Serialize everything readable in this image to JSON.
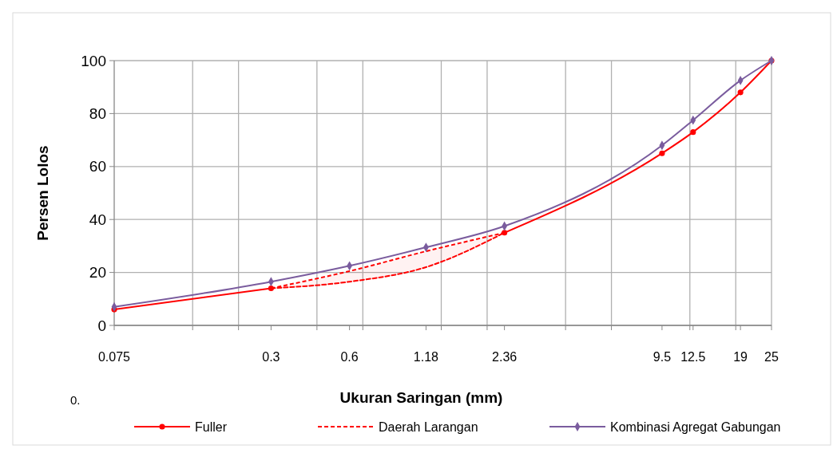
{
  "chart_data": {
    "type": "line",
    "xlabel": "Ukuran Saringan (mm)",
    "ylabel": "Persen Lolos",
    "log": "x",
    "xlim": [
      0.075,
      25
    ],
    "ylim": [
      0,
      100
    ],
    "xticks": [
      0.075,
      {
        "value": 0.15,
        "label": null
      },
      {
        "value": 0.225,
        "label": null
      },
      0.3,
      {
        "value": 0.45,
        "label": null
      },
      0.6,
      {
        "value": 0.675,
        "label": null
      },
      1.18,
      {
        "value": 1.35,
        "label": null
      },
      {
        "value": 2.025,
        "label": null
      },
      2.36,
      {
        "value": 4.05,
        "label": null
      },
      {
        "value": 6.075,
        "label": null
      },
      9.5,
      {
        "value": 12.15,
        "label": null
      },
      12.5,
      {
        "value": 18.225,
        "label": null
      },
      19,
      25
    ],
    "yticks": [
      0,
      20,
      40,
      60,
      80,
      100
    ],
    "grid": true,
    "legend": "bottom",
    "annotations": [
      "0."
    ],
    "series": [
      {
        "name": "Fuller",
        "color": "#ff0000",
        "marker": "circle",
        "line_style": "solid",
        "x": [
          0.075,
          0.3,
          0.6,
          1.18,
          2.36,
          9.5,
          12.5,
          19,
          25
        ],
        "values": [
          6,
          14,
          null,
          null,
          35,
          65,
          73,
          88,
          100
        ]
      },
      {
        "name": "Daerah Larangan",
        "type": "line",
        "color": "#ff0000",
        "marker": "none",
        "line_style": "dashed",
        "x": [
          0.3,
          0.6,
          1.18,
          2.36
        ],
        "values": [
          14,
          16.5,
          22,
          35
        ],
        "upper": [
          14,
          20.5,
          28,
          35
        ],
        "lower": [
          14,
          16.5,
          22,
          35
        ]
      },
      {
        "name": "Kombinasi Agregat Gabungan",
        "color": "#7a5c9e",
        "marker": "diamond",
        "line_style": "solid",
        "x": [
          0.075,
          0.3,
          0.6,
          1.18,
          2.36,
          9.5,
          12.5,
          19,
          25
        ],
        "values": [
          7,
          16.5,
          22.5,
          29.5,
          37.5,
          68,
          77.5,
          92.5,
          100
        ]
      }
    ]
  }
}
